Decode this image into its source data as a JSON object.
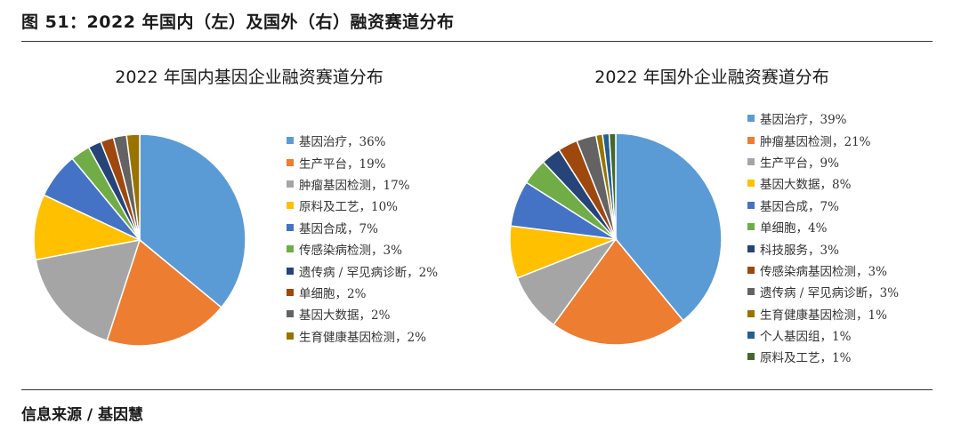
{
  "header": {
    "figure_title": "图 51：2022 年国内（左）及国外（右）融资赛道分布"
  },
  "footer": {
    "source": "信息来源 / 基因慧"
  },
  "chart_data": [
    {
      "type": "pie",
      "title": "2022 年国内基因企业融资赛道分布",
      "legend_position": "right",
      "slices": [
        {
          "label": "基因治疗，36%",
          "name": "基因治疗",
          "value": 36,
          "color": "#5b9bd5"
        },
        {
          "label": "生产平台，19%",
          "name": "生产平台",
          "value": 19,
          "color": "#ed7d31"
        },
        {
          "label": "肿瘤基因检测，17%",
          "name": "肿瘤基因检测",
          "value": 17,
          "color": "#a5a5a5"
        },
        {
          "label": "原料及工艺，10%",
          "name": "原料及工艺",
          "value": 10,
          "color": "#ffc000"
        },
        {
          "label": "基因合成，7%",
          "name": "基因合成",
          "value": 7,
          "color": "#4472c4"
        },
        {
          "label": "传感染病检测，3%",
          "name": "传感染病检测",
          "value": 3,
          "color": "#70ad47"
        },
        {
          "label": "遗传病 / 罕见病诊断，2%",
          "name": "遗传病/罕见病诊断",
          "value": 2,
          "color": "#264478"
        },
        {
          "label": "单细胞，2%",
          "name": "单细胞",
          "value": 2,
          "color": "#9e480e"
        },
        {
          "label": "基因大数据，2%",
          "name": "基因大数据",
          "value": 2,
          "color": "#636363"
        },
        {
          "label": "生育健康基因检测，2%",
          "name": "生育健康基因检测",
          "value": 2,
          "color": "#997300"
        }
      ]
    },
    {
      "type": "pie",
      "title": "2022 年国外企业融资赛道分布",
      "legend_position": "right",
      "slices": [
        {
          "label": "基因治疗，39%",
          "name": "基因治疗",
          "value": 39,
          "color": "#5b9bd5"
        },
        {
          "label": "肿瘤基因检测，21%",
          "name": "肿瘤基因检测",
          "value": 21,
          "color": "#ed7d31"
        },
        {
          "label": "生产平台，9%",
          "name": "生产平台",
          "value": 9,
          "color": "#a5a5a5"
        },
        {
          "label": "基因大数据，8%",
          "name": "基因大数据",
          "value": 8,
          "color": "#ffc000"
        },
        {
          "label": "基因合成，7%",
          "name": "基因合成",
          "value": 7,
          "color": "#4472c4"
        },
        {
          "label": "单细胞，4%",
          "name": "单细胞",
          "value": 4,
          "color": "#70ad47"
        },
        {
          "label": "科技服务，3%",
          "name": "科技服务",
          "value": 3,
          "color": "#264478"
        },
        {
          "label": "传感染病基因检测，3%",
          "name": "传感染病基因检测",
          "value": 3,
          "color": "#9e480e"
        },
        {
          "label": "遗传病 / 罕见病诊断，3%",
          "name": "遗传病/罕见病诊断",
          "value": 3,
          "color": "#636363"
        },
        {
          "label": "生育健康基因检测，1%",
          "name": "生育健康基因检测",
          "value": 1,
          "color": "#997300"
        },
        {
          "label": "个人基因组，1%",
          "name": "个人基因组",
          "value": 1,
          "color": "#255e91"
        },
        {
          "label": "原料及工艺，1%",
          "name": "原料及工艺",
          "value": 1,
          "color": "#43682b"
        }
      ]
    }
  ]
}
